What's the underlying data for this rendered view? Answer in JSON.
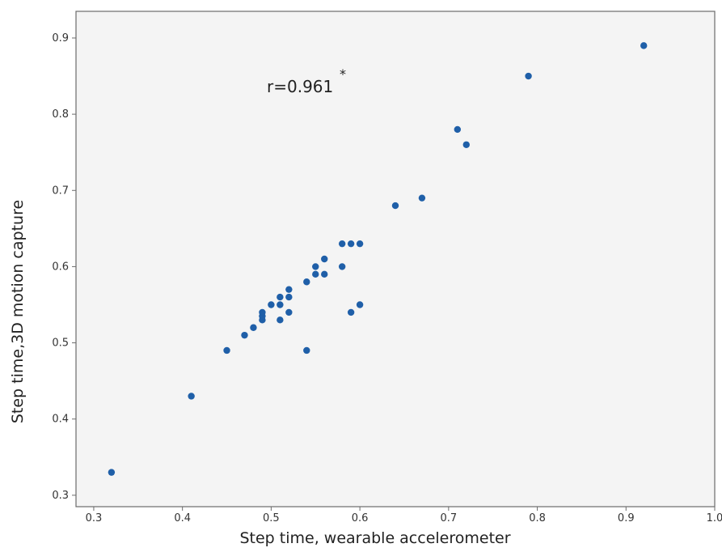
{
  "chart_data": {
    "type": "scatter",
    "xlabel": "Step time, wearable accelerometer",
    "ylabel": "Step time,3D motion capture",
    "xlim": [
      0.28,
      1.0
    ],
    "ylim": [
      0.285,
      0.935
    ],
    "x_ticks": [
      "0.3",
      "0.4",
      "0.5",
      "0.6",
      "0.7",
      "0.8",
      "0.9",
      "1.0"
    ],
    "y_ticks": [
      "0.3",
      "0.4",
      "0.5",
      "0.6",
      "0.7",
      "0.8",
      "0.9"
    ],
    "grid": false,
    "annotation": {
      "text": "r=0.961",
      "superscript": "*"
    },
    "marker_color": "#1f5fa8",
    "plot_background": "#f4f4f4",
    "points": [
      {
        "x": 0.32,
        "y": 0.33
      },
      {
        "x": 0.41,
        "y": 0.43
      },
      {
        "x": 0.45,
        "y": 0.49
      },
      {
        "x": 0.47,
        "y": 0.51
      },
      {
        "x": 0.48,
        "y": 0.52
      },
      {
        "x": 0.49,
        "y": 0.53
      },
      {
        "x": 0.49,
        "y": 0.535
      },
      {
        "x": 0.49,
        "y": 0.54
      },
      {
        "x": 0.5,
        "y": 0.55
      },
      {
        "x": 0.51,
        "y": 0.53
      },
      {
        "x": 0.51,
        "y": 0.55
      },
      {
        "x": 0.51,
        "y": 0.56
      },
      {
        "x": 0.52,
        "y": 0.54
      },
      {
        "x": 0.52,
        "y": 0.56
      },
      {
        "x": 0.52,
        "y": 0.57
      },
      {
        "x": 0.54,
        "y": 0.49
      },
      {
        "x": 0.54,
        "y": 0.58
      },
      {
        "x": 0.55,
        "y": 0.59
      },
      {
        "x": 0.55,
        "y": 0.6
      },
      {
        "x": 0.56,
        "y": 0.59
      },
      {
        "x": 0.56,
        "y": 0.61
      },
      {
        "x": 0.58,
        "y": 0.6
      },
      {
        "x": 0.58,
        "y": 0.63
      },
      {
        "x": 0.59,
        "y": 0.54
      },
      {
        "x": 0.59,
        "y": 0.63
      },
      {
        "x": 0.6,
        "y": 0.55
      },
      {
        "x": 0.6,
        "y": 0.63
      },
      {
        "x": 0.64,
        "y": 0.68
      },
      {
        "x": 0.67,
        "y": 0.69
      },
      {
        "x": 0.71,
        "y": 0.78
      },
      {
        "x": 0.72,
        "y": 0.76
      },
      {
        "x": 0.79,
        "y": 0.85
      },
      {
        "x": 0.92,
        "y": 0.89
      }
    ]
  }
}
